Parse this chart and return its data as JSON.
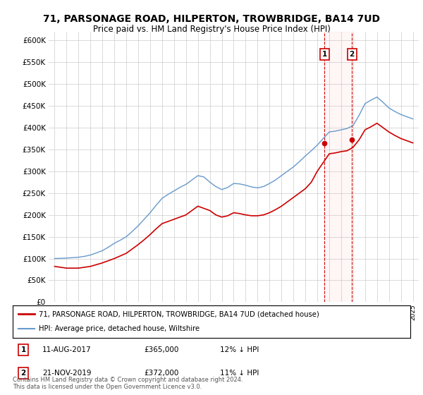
{
  "title": "71, PARSONAGE ROAD, HILPERTON, TROWBRIDGE, BA14 7UD",
  "subtitle": "Price paid vs. HM Land Registry's House Price Index (HPI)",
  "legend_line1": "71, PARSONAGE ROAD, HILPERTON, TROWBRIDGE, BA14 7UD (detached house)",
  "legend_line2": "HPI: Average price, detached house, Wiltshire",
  "footnote": "Contains HM Land Registry data © Crown copyright and database right 2024.\nThis data is licensed under the Open Government Licence v3.0.",
  "sale1_label": "1",
  "sale1_date": "11-AUG-2017",
  "sale1_price": "£365,000",
  "sale1_hpi": "12% ↓ HPI",
  "sale2_label": "2",
  "sale2_date": "21-NOV-2019",
  "sale2_price": "£372,000",
  "sale2_hpi": "11% ↓ HPI",
  "sale1_year": 2017.6,
  "sale1_value": 365000,
  "sale2_year": 2019.9,
  "sale2_value": 372000,
  "red_color": "#cc0000",
  "blue_color": "#6699cc",
  "background_color": "#ffffff",
  "grid_color": "#cccccc",
  "ylim": [
    0,
    620000
  ],
  "yticks": [
    0,
    50000,
    100000,
    150000,
    200000,
    250000,
    300000,
    350000,
    400000,
    450000,
    500000,
    550000,
    600000
  ],
  "hpi_years": [
    1995,
    1995.5,
    1996,
    1996.5,
    1997,
    1997.5,
    1998,
    1998.5,
    1999,
    1999.5,
    2000,
    2000.5,
    2001,
    2001.5,
    2002,
    2002.5,
    2003,
    2003.5,
    2004,
    2004.5,
    2005,
    2005.5,
    2006,
    2006.5,
    2007,
    2007.5,
    2008,
    2008.5,
    2009,
    2009.5,
    2010,
    2010.5,
    2011,
    2011.5,
    2012,
    2012.5,
    2013,
    2013.5,
    2014,
    2014.5,
    2015,
    2015.5,
    2016,
    2016.5,
    2017,
    2017.5,
    2018,
    2018.5,
    2019,
    2019.5,
    2020,
    2020.5,
    2021,
    2021.5,
    2022,
    2022.5,
    2023,
    2023.5,
    2024,
    2024.5,
    2025
  ],
  "hpi_values": [
    100000,
    100500,
    101000,
    102000,
    103000,
    105000,
    108000,
    113000,
    118000,
    126000,
    135000,
    142000,
    150000,
    162000,
    175000,
    190000,
    205000,
    222000,
    238000,
    247000,
    255000,
    263000,
    270000,
    280000,
    290000,
    287000,
    275000,
    265000,
    258000,
    263000,
    272000,
    271000,
    268000,
    264000,
    262000,
    265000,
    272000,
    280000,
    290000,
    300000,
    310000,
    322000,
    335000,
    347000,
    360000,
    375000,
    390000,
    392000,
    395000,
    398000,
    405000,
    428000,
    455000,
    463000,
    470000,
    458000,
    445000,
    437000,
    430000,
    425000,
    420000
  ],
  "red_years": [
    1995,
    1995.5,
    1996,
    1996.5,
    1997,
    1997.5,
    1998,
    1998.5,
    1999,
    1999.5,
    2000,
    2000.5,
    2001,
    2001.5,
    2002,
    2002.5,
    2003,
    2003.5,
    2004,
    2004.5,
    2005,
    2005.5,
    2006,
    2006.5,
    2007,
    2007.5,
    2008,
    2008.5,
    2009,
    2009.5,
    2010,
    2010.5,
    2011,
    2011.5,
    2012,
    2012.5,
    2013,
    2013.5,
    2014,
    2014.5,
    2015,
    2015.5,
    2016,
    2016.5,
    2017,
    2017.5,
    2018,
    2018.5,
    2019,
    2019.5,
    2020,
    2020.5,
    2021,
    2021.5,
    2022,
    2022.5,
    2023,
    2023.5,
    2024,
    2024.5,
    2025
  ],
  "red_values": [
    82000,
    80000,
    78000,
    78000,
    78000,
    80000,
    82000,
    86000,
    90000,
    95000,
    100000,
    106000,
    112000,
    122000,
    132000,
    143000,
    155000,
    168000,
    180000,
    185000,
    190000,
    195000,
    200000,
    210000,
    220000,
    215000,
    210000,
    200000,
    195000,
    198000,
    205000,
    203000,
    200000,
    198000,
    198000,
    200000,
    205000,
    212000,
    220000,
    230000,
    240000,
    250000,
    260000,
    275000,
    300000,
    320000,
    340000,
    342000,
    345000,
    347000,
    355000,
    372000,
    395000,
    402000,
    410000,
    400000,
    390000,
    382000,
    375000,
    370000,
    365000
  ]
}
